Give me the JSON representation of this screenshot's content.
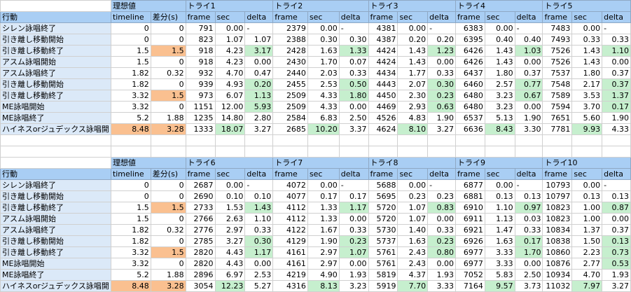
{
  "blocks": [
    {
      "ideal": "理想値",
      "action": "行動",
      "timeline_label": "timeline",
      "diff_label": "差分(s)",
      "columns": [
        "frame",
        "sec",
        "delta"
      ],
      "actions": [
        "シレン詠唱終了",
        "引き離し移動開始",
        "引き離し移動終了",
        "アスム詠唱開始",
        "アスム詠唱終了",
        "引き離し移動開始",
        "引き離し移動終了",
        "ME詠唱開始",
        "ME詠唱終了",
        "ハイネスorジュデックス詠唱開"
      ],
      "timeline": [
        0,
        0,
        1.5,
        1.5,
        1.82,
        1.82,
        3.32,
        3.32,
        5.2,
        8.48
      ],
      "diff": [
        0,
        0,
        1.5,
        0,
        0.32,
        0,
        1.5,
        0,
        1.88,
        3.28
      ],
      "tries": [
        {
          "name": "トライ1",
          "frame": [
            791,
            823,
            918,
            918,
            932,
            939,
            973,
            1151,
            1235,
            1333
          ],
          "sec": [
            "0.00",
            "1.07",
            "4.23",
            "4.23",
            "4.70",
            "4.93",
            "6.07",
            "12.00",
            "14.80",
            "18.07"
          ],
          "delta": [
            "-",
            "1.07",
            "3.17",
            "0.00",
            "0.47",
            "0.20",
            "1.13",
            "5.93",
            "2.80",
            "3.27"
          ],
          "green": [
            2,
            5,
            6,
            7
          ]
        },
        {
          "name": "トライ2",
          "frame": [
            2379,
            2388,
            2428,
            2430,
            2440,
            2455,
            2509,
            2509,
            2584,
            2685
          ],
          "sec": [
            "0.00",
            "0.30",
            "1.63",
            "1.70",
            "2.03",
            "2.53",
            "4.33",
            "4.33",
            "6.83",
            "10.20"
          ],
          "delta": [
            "-",
            "0.30",
            "1.33",
            "0.07",
            "0.33",
            "0.50",
            "1.80",
            "0.00",
            "2.50",
            "3.37"
          ],
          "green": [
            2,
            5,
            6
          ]
        },
        {
          "name": "トライ3",
          "frame": [
            4381,
            4387,
            4424,
            4424,
            4434,
            4443,
            4450,
            4469,
            4526,
            4624
          ],
          "sec": [
            "0.00",
            "0.20",
            "1.43",
            "1.43",
            "1.77",
            "2.07",
            "2.30",
            "2.93",
            "4.83",
            "8.10"
          ],
          "delta": [
            "-",
            "0.20",
            "1.23",
            "0.00",
            "0.33",
            "0.30",
            "0.23",
            "0.63",
            "1.90",
            "3.27"
          ],
          "green": [
            2,
            5,
            6,
            7
          ]
        },
        {
          "name": "トライ4",
          "frame": [
            6383,
            6395,
            6426,
            6426,
            6437,
            6460,
            6480,
            6480,
            6537,
            6636
          ],
          "sec": [
            "0.00",
            "0.40",
            "1.43",
            "1.43",
            "1.80",
            "2.57",
            "3.23",
            "3.23",
            "5.13",
            "8.43"
          ],
          "delta": [
            "-",
            "0.40",
            "1.03",
            "0.00",
            "0.37",
            "0.77",
            "0.67",
            "0.00",
            "1.90",
            "3.30"
          ],
          "green": [
            2,
            5,
            6
          ]
        },
        {
          "name": "トライ5",
          "frame": [
            7483,
            7493,
            7526,
            7526,
            7537,
            7548,
            7589,
            7594,
            7651,
            7781
          ],
          "sec": [
            "0.00",
            "0.33",
            "1.43",
            "1.43",
            "1.80",
            "2.17",
            "3.53",
            "3.70",
            "5.60",
            "9.93"
          ],
          "delta": [
            "-",
            "0.33",
            "1.10",
            "0.00",
            "0.37",
            "0.37",
            "1.37",
            "0.17",
            "1.90",
            "4.33"
          ],
          "green": [
            2,
            5,
            6,
            7
          ]
        }
      ]
    },
    {
      "ideal": "理想値",
      "action": "行動",
      "timeline_label": "timeline",
      "diff_label": "差分(s)",
      "columns": [
        "frame",
        "sec",
        "delta"
      ],
      "actions": [
        "シレン詠唱終了",
        "引き離し移動開始",
        "引き離し移動終了",
        "アスム詠唱開始",
        "アスム詠唱終了",
        "引き離し移動開始",
        "引き離し移動終了",
        "ME詠唱開始",
        "ME詠唱終了",
        "ハイネスorジュデックス詠唱開"
      ],
      "timeline": [
        0,
        0,
        1.5,
        1.5,
        1.82,
        1.82,
        3.32,
        3.32,
        5.2,
        8.48
      ],
      "diff": [
        0,
        0,
        1.5,
        0,
        0.32,
        0,
        1.5,
        0,
        1.88,
        3.28
      ],
      "tries": [
        {
          "name": "トライ6",
          "frame": [
            2687,
            2690,
            2733,
            2766,
            2776,
            2785,
            2820,
            2820,
            2896,
            3054
          ],
          "sec": [
            "0.00",
            "0.10",
            "1.53",
            "2.63",
            "2.97",
            "3.27",
            "4.43",
            "4.43",
            "6.97",
            "12.23"
          ],
          "delta": [
            "-",
            "0.10",
            "1.43",
            "1.10",
            "0.33",
            "0.30",
            "1.17",
            "0.00",
            "2.53",
            "5.27"
          ],
          "green": [
            2,
            5,
            6
          ]
        },
        {
          "name": "トライ7",
          "frame": [
            4072,
            4077,
            4112,
            4112,
            4122,
            4129,
            4161,
            4161,
            4219,
            4316
          ],
          "sec": [
            "0.00",
            "0.17",
            "1.33",
            "1.33",
            "1.67",
            "1.90",
            "2.97",
            "2.97",
            "4.90",
            "8.13"
          ],
          "delta": [
            "-",
            "0.17",
            "1.17",
            "0.00",
            "0.33",
            "0.23",
            "1.07",
            "0.00",
            "1.93",
            "3.23"
          ],
          "green": [
            2,
            5,
            6
          ]
        },
        {
          "name": "トライ8",
          "frame": [
            5688,
            5695,
            5720,
            5720,
            5730,
            5737,
            5761,
            5761,
            5819,
            5919
          ],
          "sec": [
            "0.00",
            "0.23",
            "1.07",
            "1.07",
            "1.40",
            "1.63",
            "2.43",
            "2.43",
            "4.37",
            "7.70"
          ],
          "delta": [
            "-",
            "0.23",
            "0.83",
            "0.00",
            "0.33",
            "0.23",
            "0.80",
            "0.00",
            "1.93",
            "3.33"
          ],
          "green": [
            2,
            5,
            6
          ]
        },
        {
          "name": "トライ9",
          "frame": [
            6877,
            6881,
            6910,
            6911,
            6921,
            6926,
            6977,
            6977,
            7052,
            7164
          ],
          "sec": [
            "0.00",
            "0.13",
            "1.10",
            "1.13",
            "1.47",
            "1.63",
            "3.33",
            "3.33",
            "5.83",
            "9.57"
          ],
          "delta": [
            "-",
            "0.13",
            "0.97",
            "0.03",
            "0.33",
            "0.17",
            "1.70",
            "0.00",
            "2.50",
            "3.73"
          ],
          "green": [
            2,
            5,
            6
          ]
        },
        {
          "name": "トライ10",
          "frame": [
            10793,
            10797,
            10823,
            10823,
            10834,
            10838,
            10860,
            10876,
            10934,
            11032
          ],
          "sec": [
            "0.00",
            "0.13",
            "1.00",
            "1.00",
            "1.37",
            "1.50",
            "2.23",
            "2.77",
            "4.70",
            "7.97"
          ],
          "delta": [
            "-",
            "0.13",
            "0.87",
            "0.00",
            "0.37",
            "0.13",
            "0.73",
            "0.53",
            "1.93",
            "3.27"
          ],
          "green": [
            2,
            5,
            6,
            7
          ]
        }
      ]
    }
  ]
}
